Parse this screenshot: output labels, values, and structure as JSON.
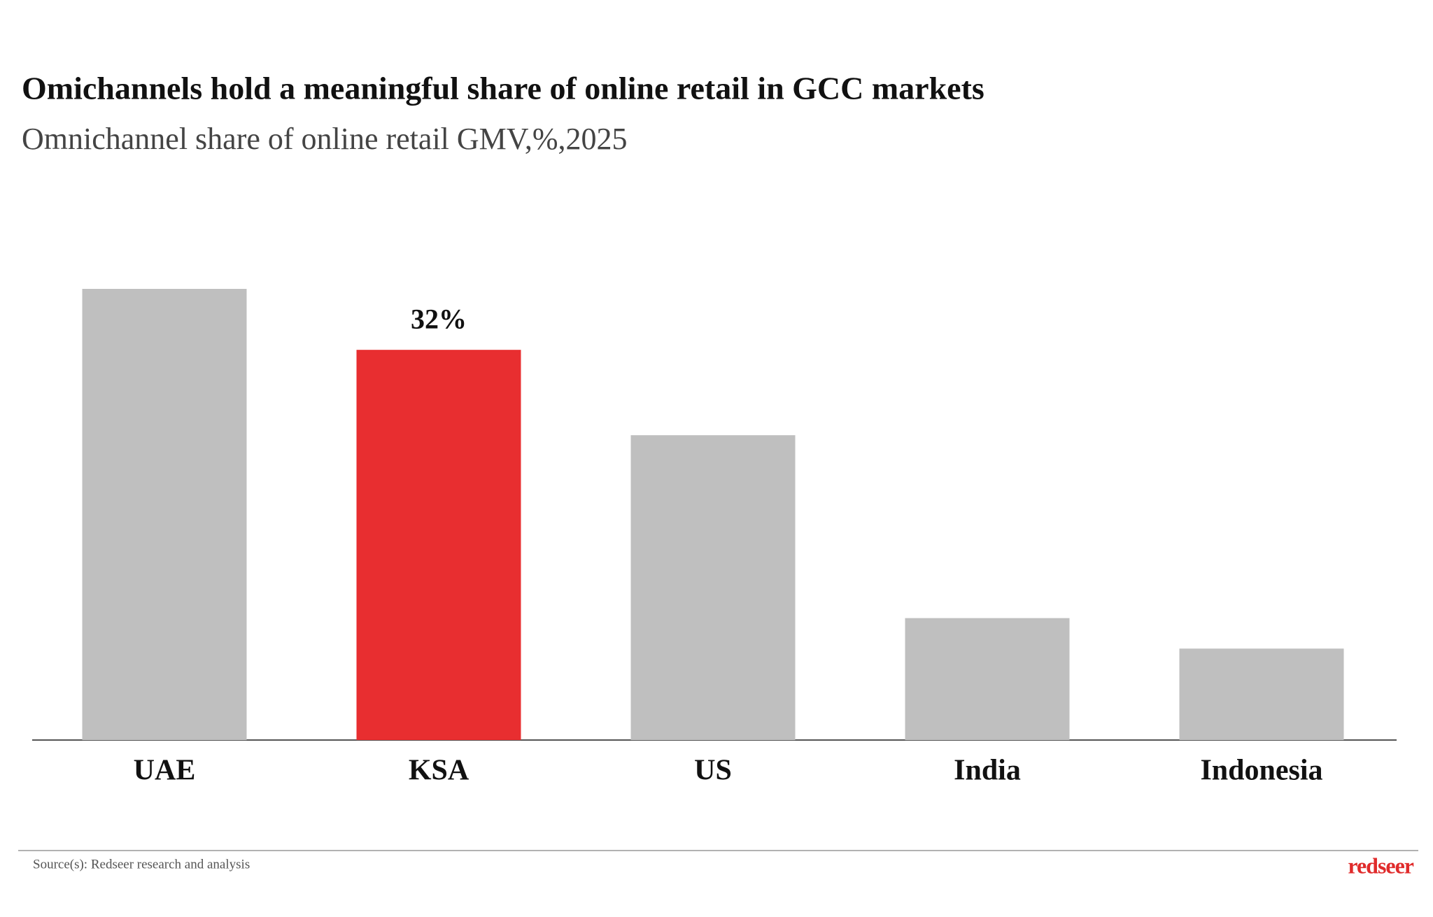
{
  "chart_data": {
    "type": "bar",
    "title": "Omichannels hold a meaningful share of online retail in GCC markets",
    "subtitle": "Omnichannel share of online retail GMV,%,2025",
    "categories": [
      "UAE",
      "KSA",
      "US",
      "India",
      "Indonesia"
    ],
    "values": [
      37,
      32,
      25,
      10,
      7.5
    ],
    "value_labels": [
      null,
      "32%",
      null,
      null,
      null
    ],
    "colors": [
      "#bfbfbf",
      "#e82e30",
      "#bfbfbf",
      "#bfbfbf",
      "#bfbfbf"
    ],
    "source": "Source(s): Redseer research and analysis",
    "brand": "redseer"
  }
}
